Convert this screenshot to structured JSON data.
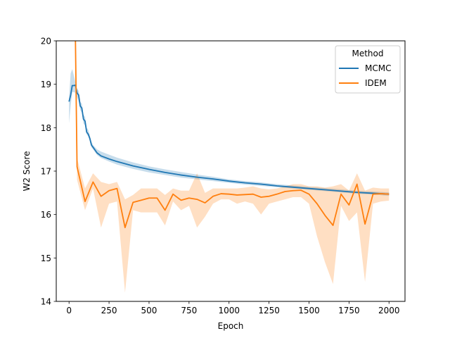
{
  "chart_data": {
    "type": "line",
    "title": "",
    "xlabel": "Epoch",
    "ylabel": "W2 Score",
    "xlim": [
      -80,
      2100
    ],
    "ylim": [
      14,
      20
    ],
    "xticks": [
      0,
      250,
      500,
      750,
      1000,
      1250,
      1500,
      1750,
      2000
    ],
    "yticks": [
      14,
      15,
      16,
      17,
      18,
      19,
      20
    ],
    "grid": false,
    "legend": {
      "title": "Method",
      "placement": "top-right"
    },
    "series": [
      {
        "name": "MCMC",
        "color": "#1f77b4",
        "x": [
          0,
          10,
          20,
          30,
          40,
          50,
          60,
          70,
          80,
          90,
          100,
          110,
          120,
          130,
          140,
          150,
          175,
          200,
          250,
          300,
          400,
          500,
          600,
          700,
          800,
          900,
          1000,
          1100,
          1200,
          1300,
          1400,
          1500,
          1600,
          1700,
          1800,
          1900,
          2000
        ],
        "y": [
          18.6,
          18.75,
          18.97,
          18.97,
          18.98,
          18.8,
          18.75,
          18.5,
          18.45,
          18.2,
          18.15,
          17.9,
          17.85,
          17.75,
          17.6,
          17.55,
          17.42,
          17.35,
          17.28,
          17.22,
          17.12,
          17.04,
          16.97,
          16.91,
          16.86,
          16.82,
          16.77,
          16.73,
          16.7,
          16.66,
          16.63,
          16.6,
          16.57,
          16.54,
          16.51,
          16.49,
          16.47
        ],
        "lower": [
          18.1,
          18.5,
          18.82,
          18.82,
          18.8,
          18.7,
          18.6,
          18.4,
          18.35,
          18.1,
          18.05,
          17.85,
          17.8,
          17.7,
          17.55,
          17.5,
          17.37,
          17.3,
          17.22,
          17.15,
          17.05,
          16.97,
          16.91,
          16.85,
          16.81,
          16.77,
          16.73,
          16.69,
          16.66,
          16.63,
          16.6,
          16.57,
          16.54,
          16.51,
          16.48,
          16.46,
          16.43
        ],
        "upper": [
          18.7,
          19.25,
          19.35,
          19.2,
          19.05,
          18.9,
          18.85,
          18.6,
          18.55,
          18.3,
          18.25,
          18.0,
          17.95,
          17.82,
          17.68,
          17.6,
          17.5,
          17.45,
          17.38,
          17.31,
          17.2,
          17.11,
          17.04,
          16.98,
          16.92,
          16.87,
          16.81,
          16.77,
          16.74,
          16.7,
          16.67,
          16.64,
          16.61,
          16.58,
          16.55,
          16.53,
          16.51
        ]
      },
      {
        "name": "IDEM",
        "color": "#ff7f0e",
        "x": [
          40,
          50,
          100,
          150,
          200,
          250,
          300,
          350,
          400,
          450,
          500,
          550,
          600,
          650,
          700,
          750,
          800,
          850,
          900,
          950,
          1000,
          1050,
          1100,
          1150,
          1200,
          1250,
          1300,
          1350,
          1400,
          1450,
          1500,
          1550,
          1600,
          1650,
          1700,
          1750,
          1800,
          1850,
          1900,
          1950,
          2000
        ],
        "y": [
          20.0,
          17.1,
          16.3,
          16.75,
          16.42,
          16.55,
          16.6,
          15.7,
          16.28,
          16.33,
          16.38,
          16.38,
          16.1,
          16.47,
          16.33,
          16.38,
          16.35,
          16.27,
          16.42,
          16.48,
          16.47,
          16.45,
          16.46,
          16.47,
          16.4,
          16.42,
          16.47,
          16.53,
          16.55,
          16.56,
          16.47,
          16.25,
          15.98,
          15.75,
          16.47,
          16.22,
          16.7,
          15.78,
          16.47,
          16.48,
          16.47
        ],
        "lower": [
          20.0,
          16.8,
          16.1,
          16.6,
          15.7,
          16.25,
          16.3,
          14.2,
          16.1,
          16.05,
          16.05,
          16.05,
          15.75,
          16.3,
          16.1,
          16.2,
          15.7,
          15.95,
          16.25,
          16.35,
          16.35,
          16.25,
          16.3,
          16.25,
          16.0,
          16.25,
          16.3,
          16.35,
          16.4,
          16.4,
          16.25,
          15.5,
          14.9,
          14.4,
          16.2,
          15.85,
          16.05,
          14.45,
          16.25,
          16.3,
          16.32
        ],
        "upper": [
          20.0,
          17.3,
          16.6,
          16.95,
          16.75,
          16.7,
          16.75,
          16.35,
          16.45,
          16.6,
          16.6,
          16.6,
          16.45,
          16.6,
          16.55,
          16.55,
          16.95,
          16.5,
          16.6,
          16.6,
          16.6,
          16.6,
          16.62,
          16.65,
          16.6,
          16.58,
          16.6,
          16.65,
          16.7,
          16.7,
          16.65,
          16.65,
          16.62,
          16.65,
          16.7,
          16.55,
          16.95,
          16.55,
          16.62,
          16.6,
          16.6
        ]
      }
    ]
  }
}
